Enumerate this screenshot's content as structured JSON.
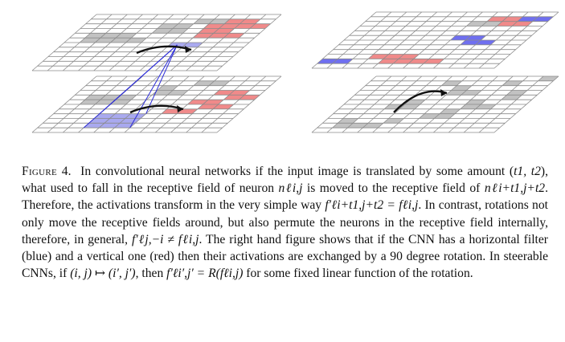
{
  "figure": {
    "label": "Figure",
    "number": "4.",
    "colors": {
      "red": "#f08a8a",
      "red_edge": "#d84040",
      "blue": "#6f6ff0",
      "blue_edge": "#3232d0",
      "gray": "#c2c2c2",
      "grid": "#8a8a8a",
      "funnel": "#2a2ad8",
      "receptive": "#a9a9ef"
    },
    "icons": [
      "curved-arrow-icon",
      "receptive-field-funnel-icon"
    ]
  },
  "caption": {
    "s1": "In convolutional neural networks if the input image is translated by some amount (",
    "s2": "), what used to fall in the receptive field of neuron ",
    "s3": " is moved to the receptive field of ",
    "s4": ". Therefore, the activations transform in the very simple way ",
    "s5": ". In contrast, rotations not only move the receptive fields around, but also permute the neurons in the receptive field internally, therefore, in general, ",
    "s6": ". The right hand figure shows that if the CNN has a horizontal filter (blue) and a vertical one (red) then their activations are exchanged by a 90 degree rotation. In steerable CNNs, if ",
    "s7": ", then ",
    "s8": " for some fixed linear function of the rotation.",
    "m_shift": "t1, t2",
    "m_neuron": "nℓi,j",
    "m_neuron_shift": "nℓi+t1,j+t2",
    "m_translate": "f′ℓi+t1,j+t2 = fℓi,j",
    "m_rotate": "f′ℓj,−i ≠ fℓi,j",
    "m_map": "(i, j) ↦ (i′, j′)",
    "m_steer": "f′ℓi′,j′ = R(fℓi,j)"
  }
}
